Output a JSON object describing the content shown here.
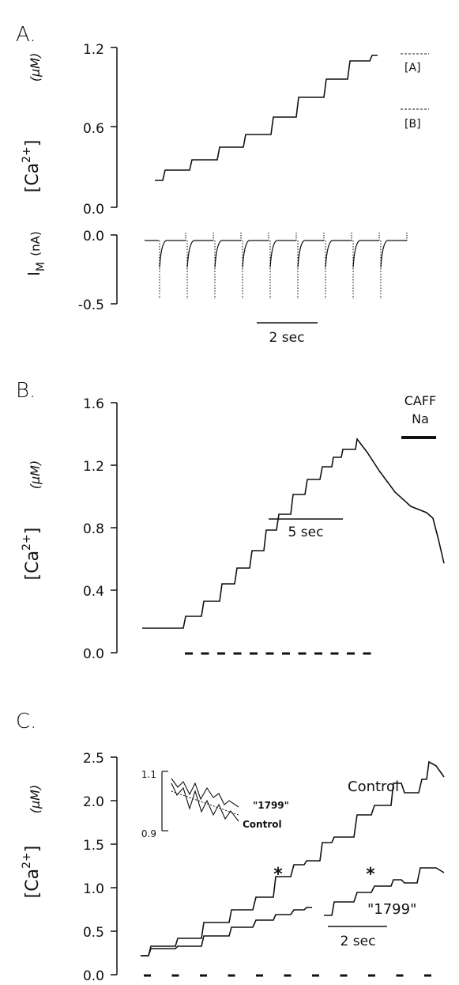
{
  "chart_data": [
    {
      "panel": "A.",
      "type": "line",
      "ylabel_main": "[Ca",
      "ylabel_sup": "2+",
      "ylabel_close": "]",
      "ylabel_unit": "(μM)",
      "yticks": [
        "1.2",
        "0.6",
        "0.0"
      ],
      "ylim": [
        0,
        1.2
      ],
      "levels": [
        {
          "label": "[A]",
          "y": 1.15
        },
        {
          "label": "[B]",
          "y": 0.72
        }
      ],
      "series": [
        {
          "x": [
            0,
            0.7,
            1.4,
            2.1,
            2.8,
            3.5,
            4.2,
            4.9,
            5.6,
            6.3,
            7.0
          ],
          "y": [
            0.18,
            0.26,
            0.35,
            0.44,
            0.53,
            0.64,
            0.74,
            0.84,
            0.95,
            1.05,
            1.1
          ]
        }
      ],
      "scale_bar": "2 sec",
      "current": {
        "ylabel": "I",
        "ylabel_sub": "M",
        "ylabel_unit": "(nA)",
        "yticks": [
          "0.0",
          "-0.5"
        ],
        "ylim": [
          -0.5,
          0
        ],
        "pulses": 9
      }
    },
    {
      "panel": "B.",
      "type": "line",
      "ylabel_main": "[Ca",
      "ylabel_sup": "2+",
      "ylabel_close": "]",
      "ylabel_unit": "(μM)",
      "yticks": [
        "1.6",
        "1.2",
        "0.8",
        "0.4",
        "0.0"
      ],
      "ylim": [
        0,
        1.6
      ],
      "series": [
        {
          "x": [
            0,
            2.5,
            3.2,
            4.0,
            4.8,
            5.6,
            6.4,
            7.2,
            8.0,
            8.8,
            9.6,
            10.4,
            11.2,
            12.0,
            13.0,
            15.0,
            17.0,
            18.0
          ],
          "y": [
            0.16,
            0.16,
            0.25,
            0.35,
            0.46,
            0.58,
            0.72,
            0.84,
            0.95,
            1.05,
            1.15,
            1.22,
            1.3,
            1.32,
            1.22,
            0.95,
            0.85,
            0.62
          ]
        }
      ],
      "scale_bar": "5 sec",
      "label_top": "CAFF",
      "label_bottom": "Na",
      "stim_marks": 12
    },
    {
      "panel": "C.",
      "type": "line",
      "ylabel_main": "[Ca",
      "ylabel_sup": "2+",
      "ylabel_close": "]",
      "ylabel_unit": "(μM)",
      "yticks": [
        "2.5",
        "2.0",
        "1.5",
        "1.0",
        "0.5",
        "0.0"
      ],
      "ylim": [
        0,
        2.5
      ],
      "series": [
        {
          "name": "Control",
          "x": [
            0,
            1,
            2,
            3,
            4,
            5,
            6,
            7,
            8,
            9,
            10
          ],
          "y": [
            0.22,
            0.32,
            0.45,
            0.58,
            0.76,
            0.98,
            1.2,
            1.48,
            1.7,
            1.95,
            2.1
          ]
        },
        {
          "name": "\"1799\"",
          "x": [
            0,
            1,
            2,
            3,
            4,
            5,
            6,
            7,
            8,
            9,
            10
          ],
          "y": [
            0.22,
            0.3,
            0.37,
            0.45,
            0.55,
            0.62,
            0.72,
            0.88,
            1.0,
            1.12,
            1.22
          ]
        }
      ],
      "marker": "*",
      "scale_bar": "2 sec",
      "stim_marks": 11,
      "inset": {
        "yticks": [
          "1.1",
          "0.9"
        ],
        "ylim": [
          0.9,
          1.1
        ],
        "labels": [
          "\"1799\"",
          "Control"
        ]
      }
    }
  ]
}
